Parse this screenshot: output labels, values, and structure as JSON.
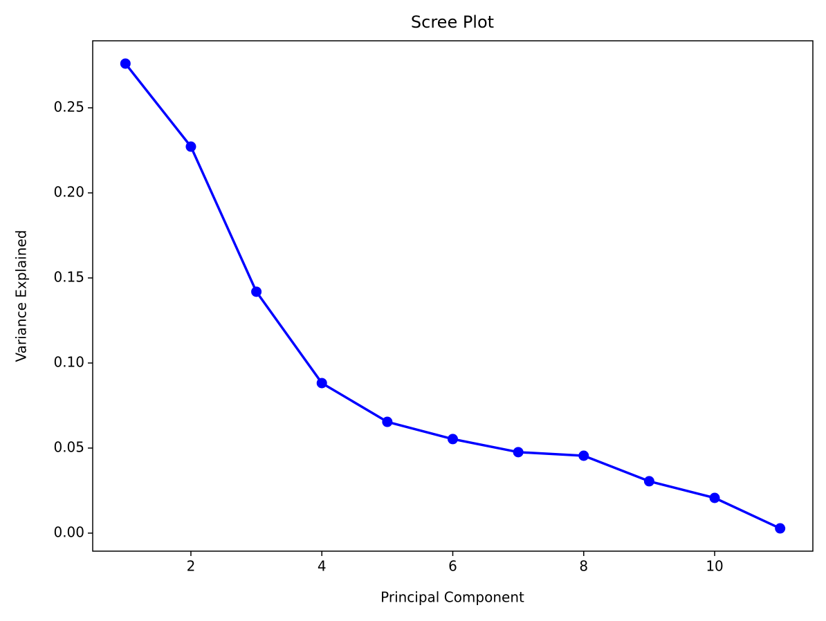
{
  "chart_data": {
    "type": "line",
    "title": "Scree Plot",
    "x_label": "Principal Component",
    "y_label": "Variance Explained",
    "x": [
      1,
      2,
      3,
      4,
      5,
      6,
      7,
      8,
      9,
      10,
      11
    ],
    "series": [
      {
        "color": "#0000ff",
        "marker": "circle",
        "values": [
          0.276,
          0.2272,
          0.1419,
          0.0882,
          0.0654,
          0.0553,
          0.0476,
          0.0455,
          0.0305,
          0.0207,
          0.0028
        ]
      }
    ],
    "xlim": [
      0.5,
      11.5
    ],
    "xticks": [
      2,
      4,
      6,
      8,
      10
    ],
    "ylim": [
      -0.0106,
      0.2894
    ],
    "yticks": [
      {
        "value": 0,
        "label": "0.00"
      },
      0.05,
      {
        "value": 0.1,
        "label": "0.10"
      },
      0.15,
      {
        "value": 0.2,
        "label": "0.20"
      },
      0.25
    ],
    "grid": false
  }
}
